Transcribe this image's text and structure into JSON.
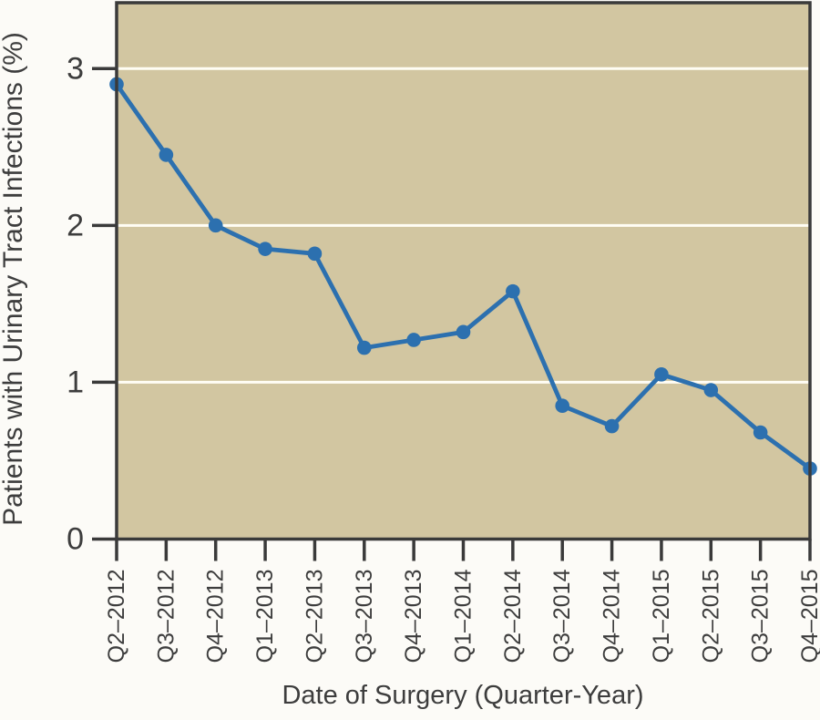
{
  "chart_data": {
    "type": "line",
    "title": "",
    "xlabel": "Date of Surgery (Quarter-Year)",
    "ylabel": "Patients with Urinary Tract Infections (%)",
    "categories": [
      "Q2–2012",
      "Q3–2012",
      "Q4–2012",
      "Q1–2013",
      "Q2–2013",
      "Q3–2013",
      "Q4–2013",
      "Q1–2014",
      "Q2–2014",
      "Q3–2014",
      "Q4–2014",
      "Q1–2015",
      "Q2–2015",
      "Q3–2015",
      "Q4–2015"
    ],
    "values": [
      2.9,
      2.45,
      2.0,
      1.85,
      1.82,
      1.22,
      1.27,
      1.32,
      1.58,
      0.85,
      0.72,
      1.05,
      0.95,
      0.68,
      0.45
    ],
    "yticks": [
      0,
      1,
      2,
      3
    ],
    "ylim": [
      0,
      3.42
    ],
    "grid": "horizontal-white-lines-at-1-2-3",
    "legend": "none",
    "marker": "filled-circle",
    "colors": {
      "page_background": "#fcfbf7",
      "plot_background": "#d2c6a1",
      "gridline": "#fffdf4",
      "line": "#2c70af",
      "marker": "#2c70af",
      "axis": "#3a3a3a",
      "text": "#3d3d3d"
    }
  }
}
